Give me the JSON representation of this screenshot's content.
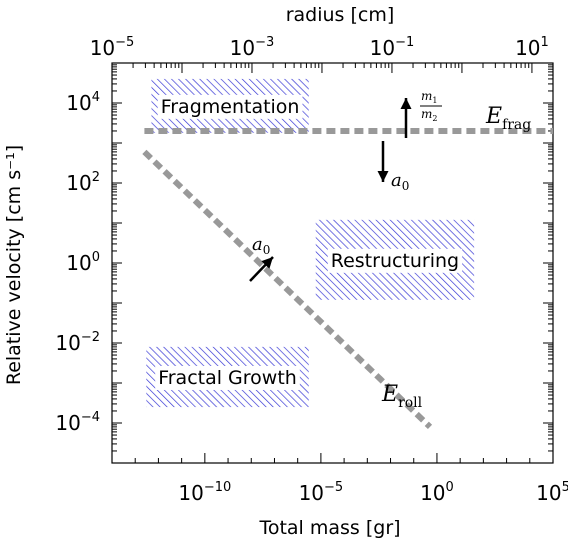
{
  "chart_data": {
    "type": "line",
    "xlabel": "Total mass [gr]",
    "ylabel": "Relative velocity [cm s⁻¹]",
    "x2label": "radius [cm]",
    "xscale": "log",
    "yscale": "log",
    "xlim": [
      1e-14,
      100000.0
    ],
    "ylim": [
      1e-05,
      100000.0
    ],
    "x2lim": [
      1e-05,
      20
    ],
    "x_ticks": [
      {
        "v": 1e-10,
        "base": "10",
        "exp": "−10"
      },
      {
        "v": 1e-05,
        "base": "10",
        "exp": "−5"
      },
      {
        "v": 1,
        "base": "10",
        "exp": "0"
      },
      {
        "v": 100000.0,
        "base": "10",
        "exp": "5"
      }
    ],
    "y_ticks": [
      {
        "v": 0.0001,
        "base": "10",
        "exp": "−4"
      },
      {
        "v": 0.01,
        "base": "10",
        "exp": "−2"
      },
      {
        "v": 1,
        "base": "10",
        "exp": "0"
      },
      {
        "v": 100,
        "base": "10",
        "exp": "2"
      },
      {
        "v": 10000.0,
        "base": "10",
        "exp": "4"
      }
    ],
    "x2_ticks": [
      {
        "v": 1e-05,
        "base": "10",
        "exp": "−5"
      },
      {
        "v": 0.001,
        "base": "10",
        "exp": "−3"
      },
      {
        "v": 0.1,
        "base": "10",
        "exp": "−1"
      },
      {
        "v": 10,
        "base": "10",
        "exp": "1"
      }
    ],
    "series": [
      {
        "name": "E_frag",
        "x": [
          2.5e-13,
          100000.0
        ],
        "y": [
          2000,
          2000
        ]
      },
      {
        "name": "E_roll",
        "x": [
          2.5e-13,
          0.5
        ],
        "y": [
          600,
          8e-05
        ]
      }
    ],
    "color": "#999999",
    "hatch_color": "#3a3ad6",
    "regions": [
      {
        "label": "Fragmentation",
        "x": [
          5e-13,
          3e-06
        ],
        "y": [
          1800,
          40000
        ]
      },
      {
        "label": "Restructuring",
        "x": [
          6e-06,
          40
        ],
        "y": [
          0.12,
          12
        ]
      },
      {
        "label": "Fractal Growth",
        "x": [
          3e-13,
          3e-06
        ],
        "y": [
          0.00025,
          0.008
        ]
      }
    ],
    "annotations": {
      "e_frag": {
        "main": "E",
        "sub": "frag"
      },
      "e_roll": {
        "main": "E",
        "sub": "roll"
      },
      "a0_upper": {
        "main": "a",
        "sub": "0"
      },
      "a0_lower": {
        "main": "a",
        "sub": "0"
      },
      "ratio": {
        "num_main": "m",
        "num_sub": "1",
        "den_main": "m",
        "den_sub": "2"
      }
    }
  }
}
